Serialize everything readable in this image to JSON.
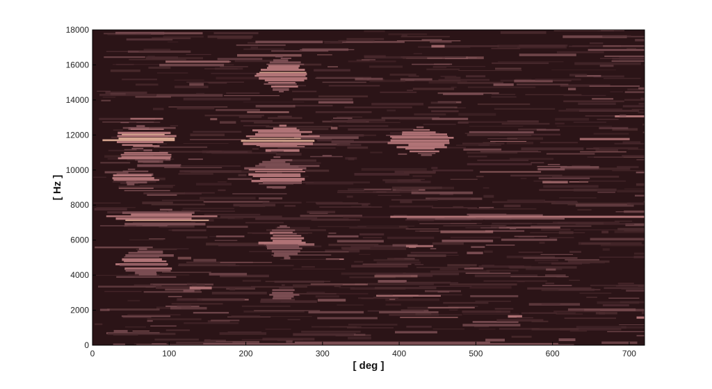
{
  "chart_data": {
    "type": "heatmap",
    "title": "",
    "xlabel": "[ deg ]",
    "ylabel": "[ Hz ]",
    "xlim": [
      0,
      720
    ],
    "ylim": [
      0,
      18000
    ],
    "x_ticks": [
      0,
      100,
      200,
      300,
      400,
      500,
      600,
      700
    ],
    "y_ticks": [
      0,
      2000,
      4000,
      6000,
      8000,
      10000,
      12000,
      14000,
      16000,
      18000
    ],
    "grid": false,
    "colormap": [
      "#2b1417",
      "#4a2a2e",
      "#7a4d52",
      "#b07376",
      "#d6a58f",
      "#f5f0a8"
    ],
    "background_color": "#2b1417",
    "hot_regions": [
      {
        "x": [
          20,
          110
        ],
        "y": [
          11200,
          12600
        ],
        "level": 0.9
      },
      {
        "x": [
          15,
          120
        ],
        "y": [
          10500,
          11200
        ],
        "level": 0.8
      },
      {
        "x": [
          20,
          90
        ],
        "y": [
          9200,
          10100
        ],
        "level": 0.75
      },
      {
        "x": [
          10,
          170
        ],
        "y": [
          6800,
          7800
        ],
        "level": 0.85
      },
      {
        "x": [
          30,
          110
        ],
        "y": [
          4000,
          5600
        ],
        "level": 0.7
      },
      {
        "x": [
          195,
          295
        ],
        "y": [
          11000,
          12600
        ],
        "level": 1.0
      },
      {
        "x": [
          215,
          280
        ],
        "y": [
          14500,
          16600
        ],
        "level": 0.8
      },
      {
        "x": [
          200,
          285
        ],
        "y": [
          8900,
          10800
        ],
        "level": 0.75
      },
      {
        "x": [
          220,
          280
        ],
        "y": [
          5000,
          6900
        ],
        "level": 0.7
      },
      {
        "x": [
          230,
          270
        ],
        "y": [
          2500,
          3500
        ],
        "level": 0.55
      },
      {
        "x": [
          390,
          470
        ],
        "y": [
          10800,
          12500
        ],
        "level": 0.85
      },
      {
        "x": [
          340,
          720
        ],
        "y": [
          7200,
          7500
        ],
        "level": 0.75
      },
      {
        "x": [
          580,
          620
        ],
        "y": [
          10000,
          10400
        ],
        "level": 0.5
      },
      {
        "x": [
          0,
          720
        ],
        "y": [
          0,
          250
        ],
        "level": 0.6
      }
    ]
  }
}
